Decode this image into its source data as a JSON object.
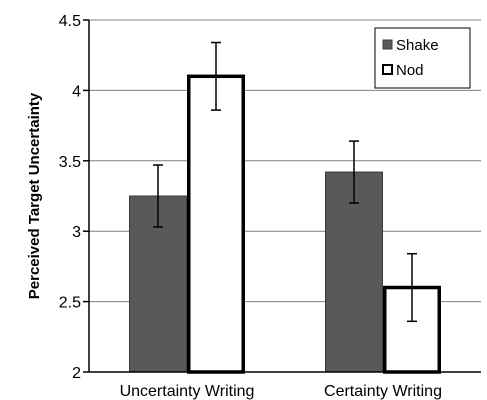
{
  "chart_data": {
    "type": "bar",
    "categories": [
      "Uncertainty Writing",
      "Certainty Writing"
    ],
    "series": [
      {
        "name": "Shake",
        "values": [
          3.25,
          3.42
        ],
        "errors": [
          0.22,
          0.22
        ],
        "fill": "#595959",
        "stroke": "#3a3a3a"
      },
      {
        "name": "Nod",
        "values": [
          4.1,
          2.6
        ],
        "errors": [
          0.24,
          0.24
        ],
        "fill": "#ffffff",
        "stroke": "#000000"
      }
    ],
    "title": "",
    "xlabel": "",
    "ylabel": "Perceived Target Uncertainty",
    "ylim": [
      2,
      4.5
    ],
    "yticks": [
      "2",
      "2.5",
      "3",
      "3.5",
      "4",
      "4.5"
    ],
    "grid": true,
    "legend_position": "top-right"
  }
}
